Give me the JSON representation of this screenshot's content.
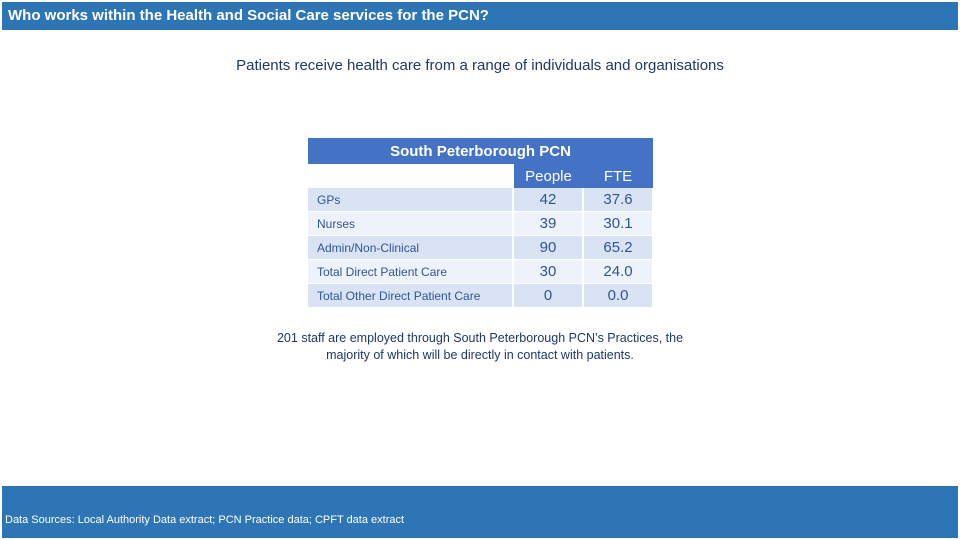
{
  "header": {
    "title": "Who works within the Health and Social Care services for the PCN?"
  },
  "subtitle": "Patients receive health care from a range of individuals and organisations",
  "table": {
    "title": "South Peterborough PCN",
    "columns": [
      "People",
      "FTE"
    ],
    "rows": [
      {
        "label": "GPs",
        "people": "42",
        "fte": "37.6"
      },
      {
        "label": "Nurses",
        "people": "39",
        "fte": "30.1"
      },
      {
        "label": "Admin/Non-Clinical",
        "people": "90",
        "fte": "65.2"
      },
      {
        "label": "Total Direct Patient Care",
        "people": "30",
        "fte": "24.0"
      },
      {
        "label": "Total Other Direct Patient Care",
        "people": "0",
        "fte": "0.0"
      }
    ]
  },
  "summary": {
    "line1": "201 staff are employed through South Peterborough PCN’s Practices, the",
    "line2": "majority of which will be directly in contact with patients."
  },
  "footer": {
    "sources": "Data Sources: Local Authority Data extract; PCN Practice data; CPFT data extract"
  },
  "colors": {
    "brand_blue": "#2e75b6",
    "table_blue": "#4472c4"
  }
}
